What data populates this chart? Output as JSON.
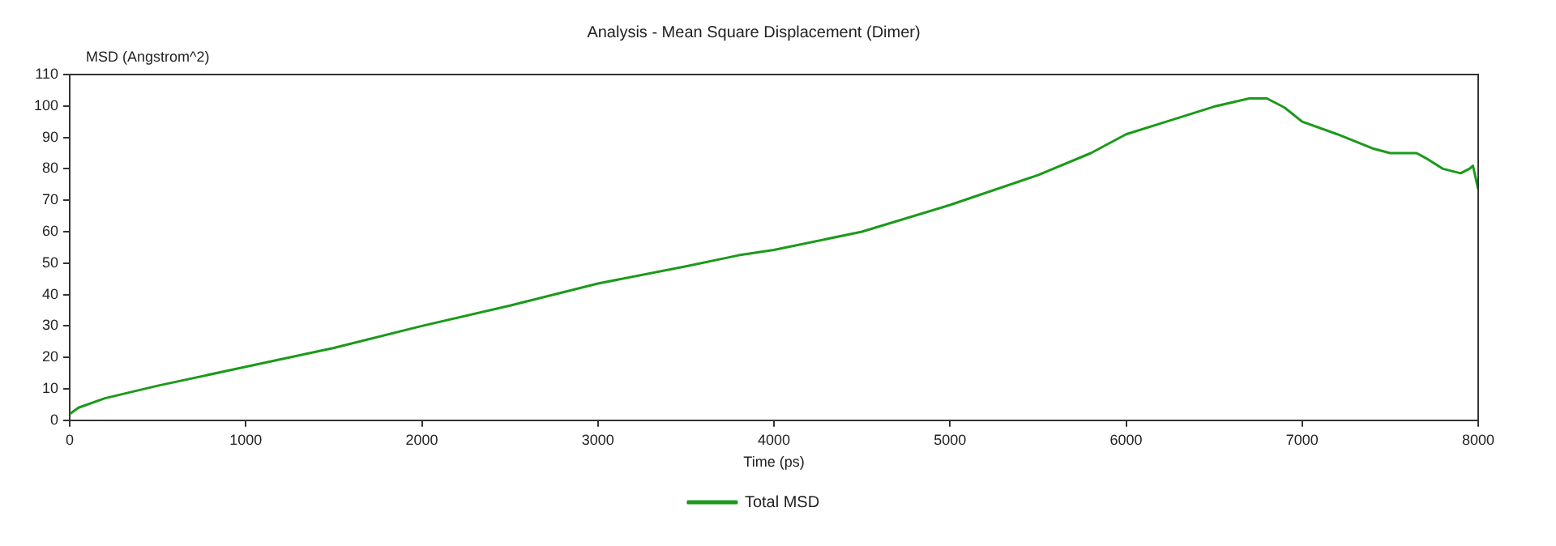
{
  "chart_data": {
    "type": "line",
    "title": "Analysis - Mean Square Displacement (Dimer)",
    "xlabel": "Time (ps)",
    "ylabel": "MSD (Angstrom^2)",
    "x": [
      0,
      50,
      200,
      500,
      1000,
      1500,
      2000,
      2500,
      3000,
      3500,
      3800,
      4000,
      4500,
      5000,
      5500,
      5800,
      6000,
      6200,
      6500,
      6700,
      6800,
      6900,
      7000,
      7200,
      7400,
      7500,
      7650,
      7700,
      7800,
      7900,
      7950,
      7970,
      8000
    ],
    "series": [
      {
        "name": "Total MSD",
        "color": "#1a9a1a",
        "values": [
          2,
          4,
          7,
          11,
          17,
          23,
          30,
          36.5,
          43.5,
          49,
          52.5,
          54.2,
          60,
          68.5,
          78,
          85,
          91,
          94.5,
          99.8,
          102.4,
          102.4,
          99.5,
          95,
          91,
          86.5,
          85,
          85,
          83.5,
          80,
          78.6,
          80,
          81,
          73.5
        ]
      }
    ],
    "xlim": [
      0,
      8000
    ],
    "xticks": [
      0,
      1000,
      2000,
      3000,
      4000,
      5000,
      6000,
      7000,
      8000
    ],
    "ylim": [
      0,
      110
    ],
    "yticks": [
      0,
      10,
      20,
      30,
      40,
      50,
      60,
      70,
      80,
      90,
      100,
      110
    ],
    "grid": false,
    "legend": "bottom",
    "marker": "none",
    "line_style": "solid"
  }
}
